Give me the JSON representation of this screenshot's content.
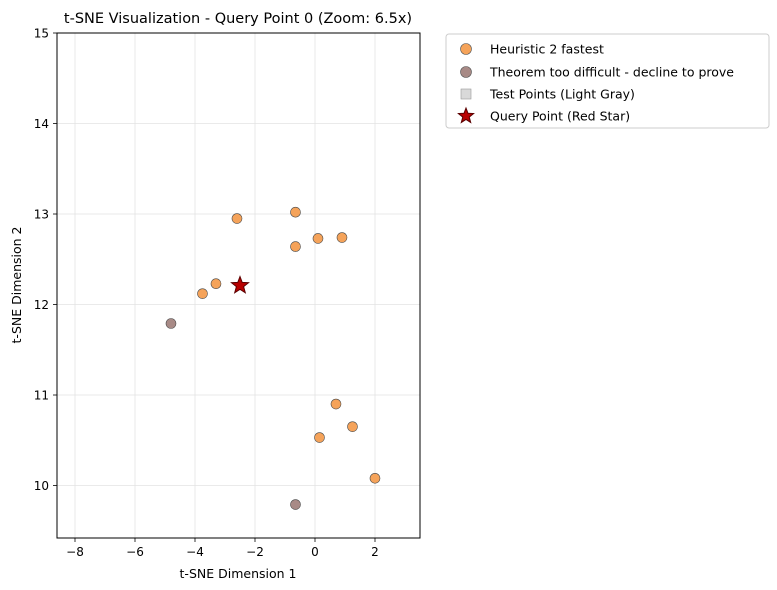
{
  "chart_data": {
    "type": "scatter",
    "title": "t-SNE Visualization - Query Point 0 (Zoom: 6.5x)",
    "xlabel": "t-SNE Dimension 1",
    "ylabel": "t-SNE Dimension 2",
    "xlim": [
      -8.6,
      3.5
    ],
    "ylim": [
      9.42,
      15.0
    ],
    "xticks": [
      -8,
      -6,
      -4,
      -2,
      0,
      2
    ],
    "yticks": [
      10,
      11,
      12,
      13,
      14,
      15
    ],
    "xtick_labels": [
      "−8",
      "−6",
      "−4",
      "−2",
      "0",
      "2"
    ],
    "ytick_labels": [
      "10",
      "11",
      "12",
      "13",
      "14",
      "15"
    ],
    "grid": true,
    "legend_position": "outside-top-right",
    "series": [
      {
        "name": "Heuristic 2 fastest",
        "color": "#f5a35a",
        "marker": "circle",
        "x": [
          -2.6,
          -0.65,
          -0.65,
          0.1,
          0.9,
          -3.3,
          -3.75,
          0.7,
          0.15,
          1.25,
          2.0
        ],
        "y": [
          12.95,
          13.02,
          12.64,
          12.73,
          12.74,
          12.23,
          12.12,
          10.9,
          10.53,
          10.65,
          10.08
        ]
      },
      {
        "name": "Theorem too difficult - decline to prove",
        "color": "#a88a86",
        "marker": "circle",
        "x": [
          -4.8,
          -0.65
        ],
        "y": [
          11.79,
          9.79
        ]
      },
      {
        "name": "Test Points (Light Gray)",
        "color": "#d9d9d9",
        "marker": "square",
        "x": [],
        "y": []
      },
      {
        "name": "Query Point (Red Star)",
        "color": "#b80000",
        "marker": "star",
        "x": [
          -2.5
        ],
        "y": [
          12.21
        ]
      }
    ]
  }
}
